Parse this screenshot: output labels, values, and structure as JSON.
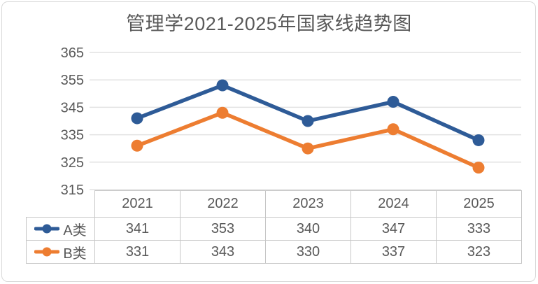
{
  "chart_data": {
    "type": "line",
    "title": "管理学2021-2025年国家线趋势图",
    "xlabel": "",
    "ylabel": "",
    "categories": [
      "2021",
      "2022",
      "2023",
      "2024",
      "2025"
    ],
    "series": [
      {
        "name": "A类",
        "color": "#2e5b97",
        "values": [
          341,
          353,
          340,
          347,
          333
        ]
      },
      {
        "name": "B类",
        "color": "#ed7d31",
        "values": [
          331,
          343,
          330,
          337,
          323
        ]
      }
    ],
    "yticks": [
      315,
      325,
      335,
      345,
      355,
      365
    ],
    "ylim": [
      315,
      365
    ],
    "grid": true,
    "marker": "circle",
    "legend_position": "table-left"
  },
  "colors": {
    "text": "#595959",
    "gridline": "#e2e2e2",
    "table_border": "#c6c6c6",
    "background": "#ffffff",
    "series_a": "#2e5b97",
    "series_b": "#ed7d31"
  }
}
